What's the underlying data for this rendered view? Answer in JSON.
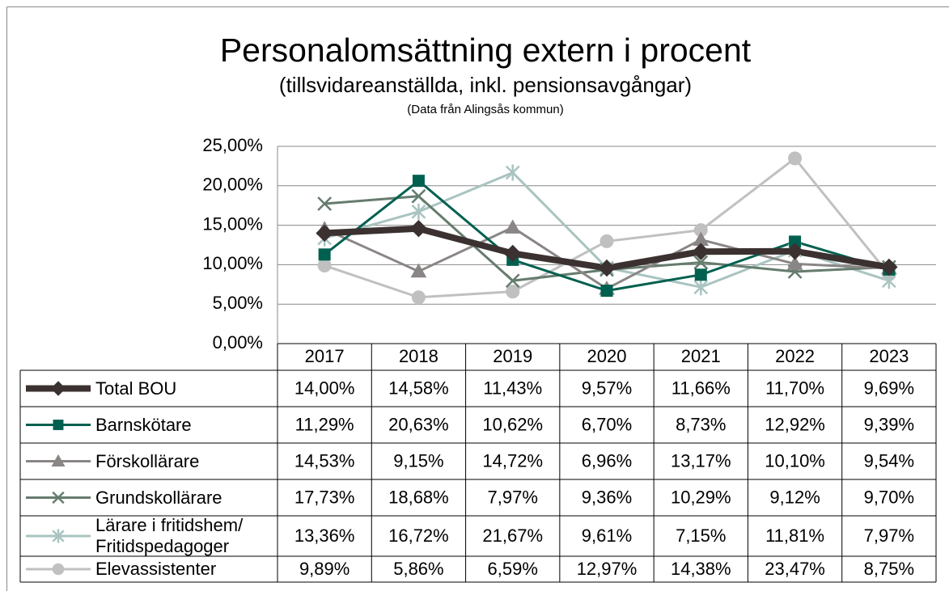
{
  "chart_data": {
    "type": "line",
    "title": "Personalomsättning extern i procent",
    "subtitle": "(tillsvidareanställda, inkl. pensionsavgångar)",
    "source": "(Data från Alingsås kommun)",
    "categories": [
      "2017",
      "2018",
      "2019",
      "2020",
      "2021",
      "2022",
      "2023"
    ],
    "ylim": [
      0,
      25
    ],
    "yticks": [
      {
        "value": 0,
        "label": "0,00%"
      },
      {
        "value": 5,
        "label": "5,00%"
      },
      {
        "value": 10,
        "label": "10,00%"
      },
      {
        "value": 15,
        "label": "15,00%"
      },
      {
        "value": 20,
        "label": "20,00%"
      },
      {
        "value": 25,
        "label": "25,00%"
      }
    ],
    "grid": true,
    "series": [
      {
        "name": "Total BOU",
        "color": "#3b3131",
        "marker": "diamond",
        "values": [
          14.0,
          14.58,
          11.43,
          9.57,
          11.66,
          11.7,
          9.69
        ],
        "value_labels": [
          "14,00%",
          "14,58%",
          "11,43%",
          "9,57%",
          "11,66%",
          "11,70%",
          "9,69%"
        ]
      },
      {
        "name": "Barnskötare",
        "color": "#00604f",
        "marker": "square",
        "values": [
          11.29,
          20.63,
          10.62,
          6.7,
          8.73,
          12.92,
          9.39
        ],
        "value_labels": [
          "11,29%",
          "20,63%",
          "10,62%",
          "6,70%",
          "8,73%",
          "12,92%",
          "9,39%"
        ]
      },
      {
        "name": "Förskollärare",
        "color": "#8b8686",
        "marker": "triangle",
        "values": [
          14.53,
          9.15,
          14.72,
          6.96,
          13.17,
          10.1,
          9.54
        ],
        "value_labels": [
          "14,53%",
          "9,15%",
          "14,72%",
          "6,96%",
          "13,17%",
          "10,10%",
          "9,54%"
        ]
      },
      {
        "name": "Grundskollärare",
        "color": "#667c6e",
        "marker": "x",
        "values": [
          17.73,
          18.68,
          7.97,
          9.36,
          10.29,
          9.12,
          9.7
        ],
        "value_labels": [
          "17,73%",
          "18,68%",
          "7,97%",
          "9,36%",
          "10,29%",
          "9,12%",
          "9,70%"
        ]
      },
      {
        "name": "Lärare i fritidshem/\nFritidspedagoger",
        "color": "#a9c4c1",
        "marker": "star",
        "values": [
          13.36,
          16.72,
          21.67,
          9.61,
          7.15,
          11.81,
          7.97
        ],
        "value_labels": [
          "13,36%",
          "16,72%",
          "21,67%",
          "9,61%",
          "7,15%",
          "11,81%",
          "7,97%"
        ]
      },
      {
        "name": "Elevassistenter",
        "color": "#c0c0c0",
        "marker": "circle",
        "values": [
          9.89,
          5.86,
          6.59,
          12.97,
          14.38,
          23.47,
          8.75
        ],
        "value_labels": [
          "9,89%",
          "5,86%",
          "6,59%",
          "12,97%",
          "14,38%",
          "23,47%",
          "8,75%"
        ]
      }
    ]
  }
}
